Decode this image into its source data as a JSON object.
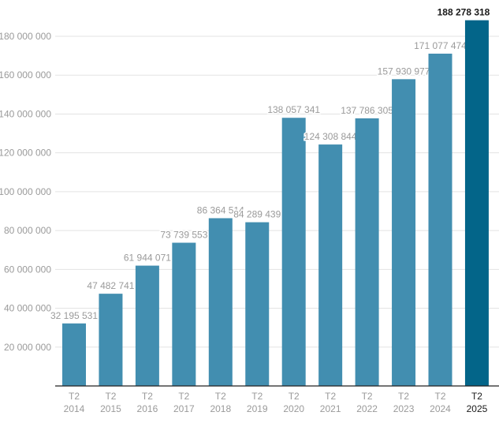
{
  "chart_data": {
    "type": "bar",
    "title": "",
    "xlabel": "",
    "ylabel": "",
    "categories": [
      [
        "T2",
        "2014"
      ],
      [
        "T2",
        "2015"
      ],
      [
        "T2",
        "2016"
      ],
      [
        "T2",
        "2017"
      ],
      [
        "T2",
        "2018"
      ],
      [
        "T2",
        "2019"
      ],
      [
        "T2",
        "2020"
      ],
      [
        "T2",
        "2021"
      ],
      [
        "T2",
        "2022"
      ],
      [
        "T2",
        "2023"
      ],
      [
        "T2",
        "2024"
      ],
      [
        "T2",
        "2025"
      ]
    ],
    "values": [
      32195531,
      47482741,
      61944071,
      73739553,
      86364514,
      84289439,
      138057341,
      124308844,
      137786305,
      157930977,
      171077474,
      188278318
    ],
    "value_labels": [
      "32 195 531",
      "47 482 741",
      "61 944 071",
      "73 739 553",
      "86 364 514",
      "84 289 439",
      "138 057 341",
      "124 308 844",
      "137 786 305",
      "157 930 977",
      "171 077 474",
      "188 278 318"
    ],
    "yticks": [
      20000000,
      40000000,
      60000000,
      80000000,
      100000000,
      120000000,
      140000000,
      160000000,
      180000000
    ],
    "ytick_labels": [
      "20 000 000",
      "40 000 000",
      "60 000 000",
      "80 000 000",
      "100 000 000",
      "120 000 000",
      "140 000 000",
      "160 000 000",
      "180 000 000"
    ],
    "ylim": [
      0,
      198700000
    ],
    "grid": true,
    "highlight_index": 11,
    "colors": {
      "bar": "#428eb0",
      "highlight": "#036589",
      "grid": "#e3e3e3",
      "axis": "#222222"
    }
  }
}
